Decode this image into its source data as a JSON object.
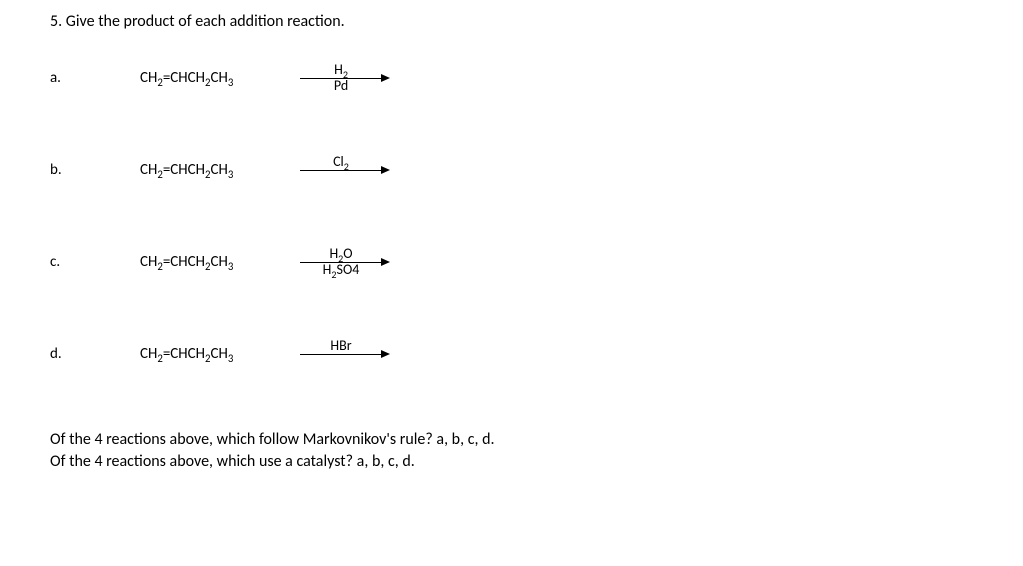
{
  "question": {
    "number": "5.",
    "prompt": "Give the product of each addition reaction."
  },
  "parts": [
    {
      "label": "a.",
      "reactant": "CH<sub>2</sub>=CHCH<sub>2</sub>CH<sub>3</sub>",
      "arrow_top": "H<sub>2</sub>",
      "arrow_bottom": "Pd"
    },
    {
      "label": "b.",
      "reactant": "CH<sub>2</sub>=CHCH<sub>2</sub>CH<sub>3</sub>",
      "arrow_top": "Cl<sub>2</sub>",
      "arrow_bottom": ""
    },
    {
      "label": "c.",
      "reactant": "CH<sub>2</sub>=CHCH<sub>2</sub>CH<sub>3</sub>",
      "arrow_top": "H<sub>2</sub>O",
      "arrow_bottom": "H<sub>2</sub>SO4"
    },
    {
      "label": "d.",
      "reactant": "CH<sub>2</sub>=CHCH<sub>2</sub>CH<sub>3</sub>",
      "arrow_top": "HBr",
      "arrow_bottom": ""
    }
  ],
  "footer": {
    "q1": "Of the 4 reactions above, which follow Markovnikov's rule?  a, b, c, d.",
    "q2": "Of the 4 reactions above, which use a catalyst?  a, b, c, d."
  }
}
